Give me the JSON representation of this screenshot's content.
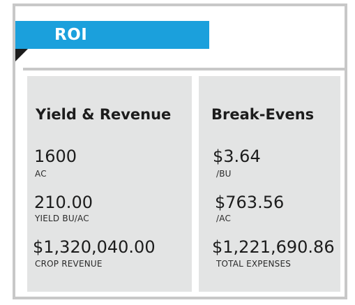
{
  "header": {
    "title": "ROI"
  },
  "yield_revenue": {
    "title": "Yield & Revenue",
    "metrics": [
      {
        "value": "1600",
        "label": "AC"
      },
      {
        "value": "210.00",
        "label": "YIELD BU/AC"
      },
      {
        "value": "$1,320,040.00",
        "label": "CROP REVENUE"
      }
    ]
  },
  "break_evens": {
    "title": "Break-Evens",
    "metrics": [
      {
        "value": "$3.64",
        "label": "/BU"
      },
      {
        "value": "$763.56",
        "label": "/AC"
      },
      {
        "value": "$1,221,690.86",
        "label": "TOTAL EXPENSES"
      }
    ]
  },
  "colors": {
    "accent": "#1ba0dc",
    "panel_bg": "#e3e4e4",
    "border": "#c8c8c8",
    "text": "#1c1c1c"
  }
}
